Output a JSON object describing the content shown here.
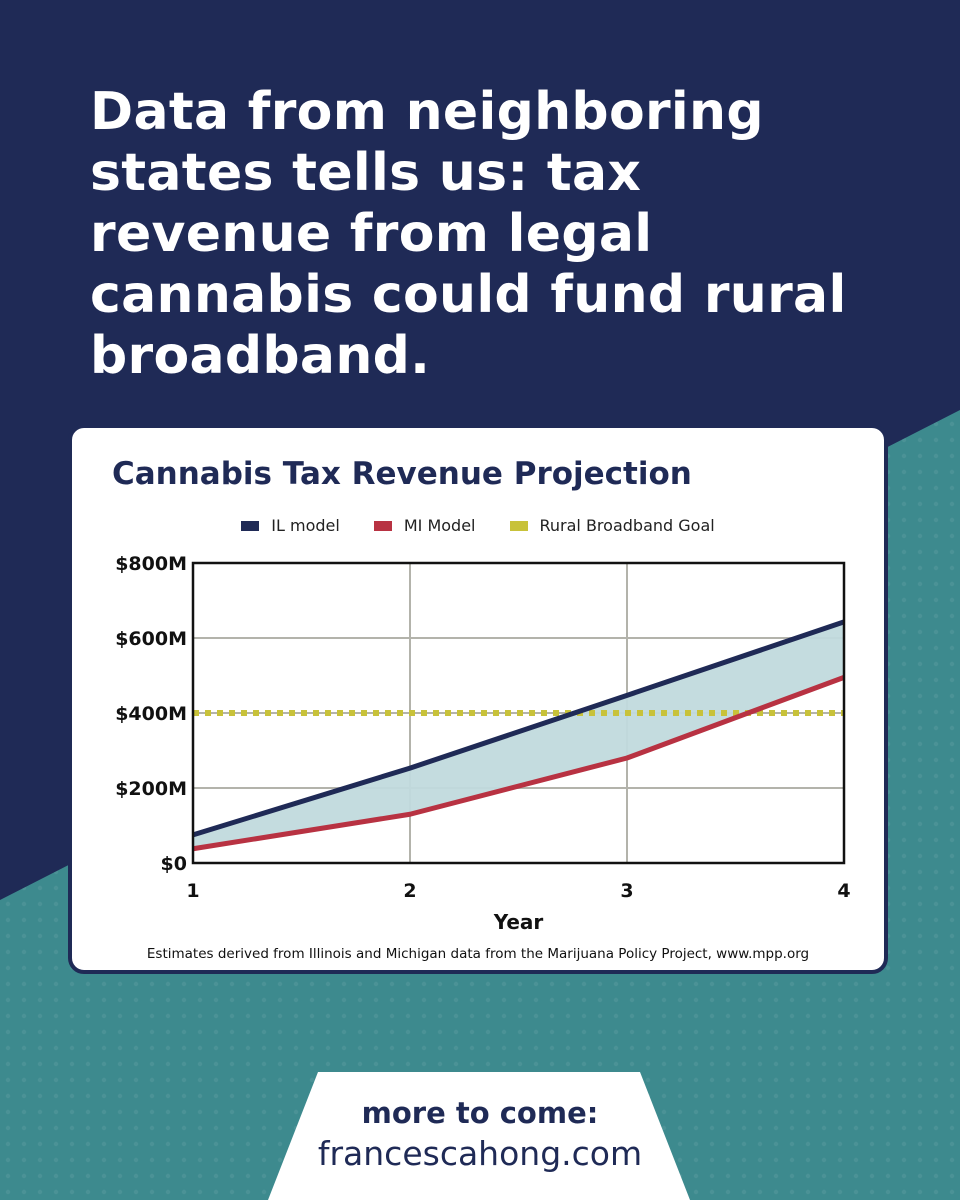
{
  "headline": "Data from neighboring states tells us: tax revenue from legal cannabis could fund rural broadband.",
  "colors": {
    "navy": "#1f2a56",
    "teal": "#3d8a8e",
    "il_line": "#1f2a56",
    "mi_line": "#b83242",
    "goal_line": "#c8c23a",
    "fill_between": "#c1dadd"
  },
  "chart_data": {
    "type": "line",
    "title": "Cannabis Tax Revenue Projection",
    "xlabel": "Year",
    "ylabel": "",
    "x": [
      1,
      2,
      3,
      4
    ],
    "xlim": [
      1,
      4
    ],
    "ylim": [
      0,
      800
    ],
    "yticks": [
      0,
      200,
      400,
      600,
      800
    ],
    "ytick_labels": [
      "$0",
      "$200M",
      "$400M",
      "$600M",
      "$800M"
    ],
    "xtick_labels": [
      "1",
      "2",
      "3",
      "4"
    ],
    "grid": true,
    "legend_position": "top-center",
    "series": [
      {
        "name": "IL model",
        "values": [
          75,
          253,
          447,
          643
        ]
      },
      {
        "name": "MI Model",
        "values": [
          38,
          130,
          280,
          495
        ]
      },
      {
        "name": "Rural Broadband Goal",
        "values": [
          400,
          400,
          400,
          400
        ],
        "style": "dotted"
      }
    ],
    "shaded_between": [
      "IL model",
      "MI Model"
    ],
    "source_note": "Estimates derived from Illinois and Michigan data from the Marijuana Policy Project, www.mpp.org"
  },
  "cta": {
    "line1": "more to come:",
    "line2": "francescahong.com"
  }
}
